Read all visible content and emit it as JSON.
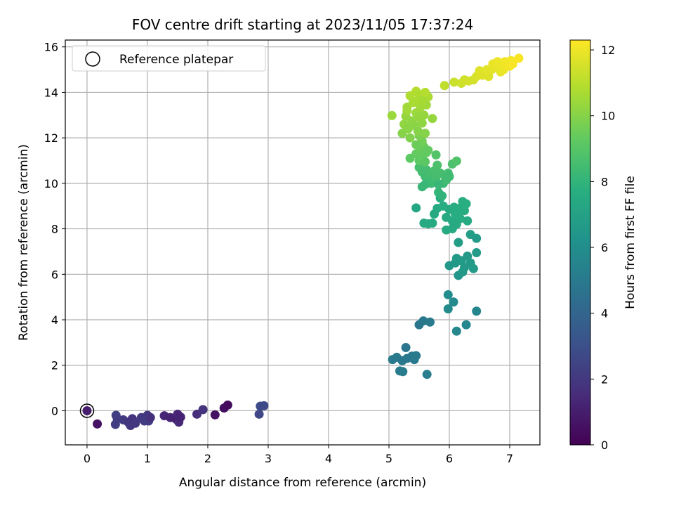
{
  "chart_data": {
    "type": "scatter",
    "title": "FOV centre drift starting at 2023/11/05 17:37:24",
    "xlabel": "Angular distance from reference (arcmin)",
    "ylabel": "Rotation from reference (arcmin)",
    "xlim": [
      -0.36,
      7.5
    ],
    "ylim": [
      -1.5,
      16.3
    ],
    "x_ticks": [
      0,
      1,
      2,
      3,
      4,
      5,
      6,
      7
    ],
    "y_ticks": [
      0,
      2,
      4,
      6,
      8,
      10,
      12,
      14,
      16
    ],
    "grid": true,
    "colormap": "viridis",
    "colorbar": {
      "label": "Hours from first FF file",
      "range": [
        0,
        12.3
      ],
      "ticks": [
        0,
        2,
        4,
        6,
        8,
        10,
        12
      ]
    },
    "legend": {
      "position": "top-left",
      "entries": [
        "Reference platepar"
      ]
    },
    "reference_point": {
      "x": 0,
      "y": 0
    },
    "points": [
      {
        "x": 0.0,
        "y": 0.0,
        "t": 1.0
      },
      {
        "x": 0.17,
        "y": -0.58,
        "t": 0.6
      },
      {
        "x": 0.47,
        "y": -0.6,
        "t": 2.2
      },
      {
        "x": 0.48,
        "y": -0.2,
        "t": 2.3
      },
      {
        "x": 0.5,
        "y": -0.35,
        "t": 2.2
      },
      {
        "x": 0.6,
        "y": -0.4,
        "t": 2.1
      },
      {
        "x": 0.68,
        "y": -0.5,
        "t": 2.0
      },
      {
        "x": 0.72,
        "y": -0.65,
        "t": 1.9
      },
      {
        "x": 0.75,
        "y": -0.35,
        "t": 1.8
      },
      {
        "x": 0.8,
        "y": -0.55,
        "t": 1.9
      },
      {
        "x": 0.9,
        "y": -0.3,
        "t": 2.0
      },
      {
        "x": 0.95,
        "y": -0.45,
        "t": 2.1
      },
      {
        "x": 1.0,
        "y": -0.2,
        "t": 2.0
      },
      {
        "x": 1.02,
        "y": -0.45,
        "t": 2.2
      },
      {
        "x": 1.05,
        "y": -0.3,
        "t": 1.7
      },
      {
        "x": 1.28,
        "y": -0.22,
        "t": 1.3
      },
      {
        "x": 1.38,
        "y": -0.3,
        "t": 1.2
      },
      {
        "x": 1.48,
        "y": -0.38,
        "t": 1.1
      },
      {
        "x": 1.5,
        "y": -0.15,
        "t": 1.3
      },
      {
        "x": 1.52,
        "y": -0.5,
        "t": 1.4
      },
      {
        "x": 1.55,
        "y": -0.28,
        "t": 1.2
      },
      {
        "x": 1.82,
        "y": -0.15,
        "t": 1.6
      },
      {
        "x": 1.92,
        "y": 0.05,
        "t": 1.8
      },
      {
        "x": 2.12,
        "y": -0.18,
        "t": 0.6
      },
      {
        "x": 2.27,
        "y": 0.12,
        "t": 0.5
      },
      {
        "x": 2.33,
        "y": 0.25,
        "t": 0.4
      },
      {
        "x": 2.85,
        "y": -0.15,
        "t": 2.6
      },
      {
        "x": 2.87,
        "y": 0.2,
        "t": 2.8
      },
      {
        "x": 2.93,
        "y": 0.22,
        "t": 2.7
      },
      {
        "x": 5.06,
        "y": 2.25,
        "t": 5.0
      },
      {
        "x": 5.13,
        "y": 2.35,
        "t": 5.0
      },
      {
        "x": 5.18,
        "y": 1.75,
        "t": 5.1
      },
      {
        "x": 5.23,
        "y": 1.72,
        "t": 5.1
      },
      {
        "x": 5.22,
        "y": 2.2,
        "t": 4.9
      },
      {
        "x": 5.28,
        "y": 2.78,
        "t": 4.8
      },
      {
        "x": 5.3,
        "y": 2.3,
        "t": 4.9
      },
      {
        "x": 5.38,
        "y": 2.4,
        "t": 4.9
      },
      {
        "x": 5.42,
        "y": 2.25,
        "t": 5.0
      },
      {
        "x": 5.45,
        "y": 2.42,
        "t": 5.0
      },
      {
        "x": 5.5,
        "y": 3.78,
        "t": 4.8
      },
      {
        "x": 5.57,
        "y": 3.95,
        "t": 4.9
      },
      {
        "x": 5.63,
        "y": 1.6,
        "t": 5.2
      },
      {
        "x": 5.68,
        "y": 3.9,
        "t": 5.0
      },
      {
        "x": 5.98,
        "y": 5.1,
        "t": 5.9
      },
      {
        "x": 5.98,
        "y": 4.48,
        "t": 5.8
      },
      {
        "x": 6.07,
        "y": 4.78,
        "t": 5.8
      },
      {
        "x": 6.12,
        "y": 3.5,
        "t": 5.7
      },
      {
        "x": 6.28,
        "y": 3.78,
        "t": 5.6
      },
      {
        "x": 6.45,
        "y": 4.38,
        "t": 5.6
      },
      {
        "x": 6.0,
        "y": 6.38,
        "t": 6.5
      },
      {
        "x": 6.1,
        "y": 6.5,
        "t": 6.5
      },
      {
        "x": 6.12,
        "y": 6.7,
        "t": 6.6
      },
      {
        "x": 6.15,
        "y": 5.95,
        "t": 6.4
      },
      {
        "x": 6.2,
        "y": 6.6,
        "t": 6.6
      },
      {
        "x": 6.25,
        "y": 6.3,
        "t": 6.6
      },
      {
        "x": 6.3,
        "y": 6.8,
        "t": 6.6
      },
      {
        "x": 6.35,
        "y": 6.5,
        "t": 6.6
      },
      {
        "x": 6.4,
        "y": 6.25,
        "t": 6.7
      },
      {
        "x": 6.15,
        "y": 7.4,
        "t": 6.8
      },
      {
        "x": 6.35,
        "y": 7.75,
        "t": 6.8
      },
      {
        "x": 6.45,
        "y": 7.58,
        "t": 6.7
      },
      {
        "x": 6.45,
        "y": 6.95,
        "t": 6.7
      },
      {
        "x": 6.22,
        "y": 6.1,
        "t": 6.6
      },
      {
        "x": 5.45,
        "y": 8.92,
        "t": 7.3
      },
      {
        "x": 5.58,
        "y": 8.25,
        "t": 7.4
      },
      {
        "x": 5.65,
        "y": 8.22,
        "t": 7.4
      },
      {
        "x": 5.72,
        "y": 8.25,
        "t": 7.4
      },
      {
        "x": 5.75,
        "y": 8.65,
        "t": 7.5
      },
      {
        "x": 5.8,
        "y": 8.9,
        "t": 7.5
      },
      {
        "x": 5.85,
        "y": 9.35,
        "t": 7.6
      },
      {
        "x": 5.9,
        "y": 9.0,
        "t": 7.6
      },
      {
        "x": 5.95,
        "y": 8.5,
        "t": 7.5
      },
      {
        "x": 5.95,
        "y": 7.95,
        "t": 7.4
      },
      {
        "x": 6.0,
        "y": 8.85,
        "t": 7.5
      },
      {
        "x": 6.05,
        "y": 8.35,
        "t": 7.5
      },
      {
        "x": 6.08,
        "y": 8.95,
        "t": 7.6
      },
      {
        "x": 6.1,
        "y": 8.65,
        "t": 7.6
      },
      {
        "x": 6.15,
        "y": 8.75,
        "t": 7.6
      },
      {
        "x": 6.18,
        "y": 8.45,
        "t": 7.6
      },
      {
        "x": 6.2,
        "y": 8.95,
        "t": 7.7
      },
      {
        "x": 6.22,
        "y": 9.2,
        "t": 7.7
      },
      {
        "x": 6.25,
        "y": 8.8,
        "t": 7.6
      },
      {
        "x": 6.28,
        "y": 9.1,
        "t": 7.7
      },
      {
        "x": 6.3,
        "y": 8.35,
        "t": 7.5
      },
      {
        "x": 6.12,
        "y": 8.2,
        "t": 7.5
      },
      {
        "x": 6.05,
        "y": 8.0,
        "t": 7.4
      },
      {
        "x": 5.5,
        "y": 10.7,
        "t": 8.6
      },
      {
        "x": 5.55,
        "y": 10.5,
        "t": 8.5
      },
      {
        "x": 5.6,
        "y": 10.3,
        "t": 8.4
      },
      {
        "x": 5.62,
        "y": 10.6,
        "t": 8.5
      },
      {
        "x": 5.65,
        "y": 10.1,
        "t": 8.4
      },
      {
        "x": 5.68,
        "y": 10.4,
        "t": 8.5
      },
      {
        "x": 5.7,
        "y": 10.0,
        "t": 8.3
      },
      {
        "x": 5.72,
        "y": 10.2,
        "t": 8.4
      },
      {
        "x": 5.75,
        "y": 10.55,
        "t": 8.6
      },
      {
        "x": 5.78,
        "y": 10.25,
        "t": 8.5
      },
      {
        "x": 5.8,
        "y": 10.8,
        "t": 8.7
      },
      {
        "x": 5.85,
        "y": 10.45,
        "t": 8.6
      },
      {
        "x": 5.9,
        "y": 10.0,
        "t": 8.3
      },
      {
        "x": 5.92,
        "y": 10.35,
        "t": 8.5
      },
      {
        "x": 5.95,
        "y": 10.15,
        "t": 8.4
      },
      {
        "x": 5.98,
        "y": 10.45,
        "t": 8.5
      },
      {
        "x": 6.0,
        "y": 10.3,
        "t": 8.4
      },
      {
        "x": 6.05,
        "y": 10.85,
        "t": 8.7
      },
      {
        "x": 6.12,
        "y": 10.98,
        "t": 8.8
      },
      {
        "x": 5.55,
        "y": 9.85,
        "t": 8.2
      },
      {
        "x": 5.6,
        "y": 9.95,
        "t": 8.2
      },
      {
        "x": 5.82,
        "y": 9.6,
        "t": 8.1
      },
      {
        "x": 5.88,
        "y": 9.45,
        "t": 8.0
      },
      {
        "x": 5.82,
        "y": 9.95,
        "t": 8.2
      },
      {
        "x": 5.78,
        "y": 11.25,
        "t": 8.9
      },
      {
        "x": 5.35,
        "y": 11.1,
        "t": 9.2
      },
      {
        "x": 5.45,
        "y": 11.3,
        "t": 9.3
      },
      {
        "x": 5.5,
        "y": 11.0,
        "t": 9.2
      },
      {
        "x": 5.52,
        "y": 11.5,
        "t": 9.4
      },
      {
        "x": 5.55,
        "y": 11.2,
        "t": 9.3
      },
      {
        "x": 5.58,
        "y": 11.6,
        "t": 9.4
      },
      {
        "x": 5.6,
        "y": 10.95,
        "t": 9.1
      },
      {
        "x": 5.62,
        "y": 11.35,
        "t": 9.3
      },
      {
        "x": 5.65,
        "y": 11.45,
        "t": 9.3
      },
      {
        "x": 5.55,
        "y": 11.85,
        "t": 9.6
      },
      {
        "x": 5.5,
        "y": 12.1,
        "t": 9.8
      },
      {
        "x": 5.45,
        "y": 11.7,
        "t": 9.5
      },
      {
        "x": 5.05,
        "y": 12.98,
        "t": 10.4
      },
      {
        "x": 5.22,
        "y": 12.2,
        "t": 10.0
      },
      {
        "x": 5.25,
        "y": 12.6,
        "t": 10.2
      },
      {
        "x": 5.28,
        "y": 12.95,
        "t": 10.3
      },
      {
        "x": 5.3,
        "y": 13.35,
        "t": 10.5
      },
      {
        "x": 5.32,
        "y": 12.4,
        "t": 10.1
      },
      {
        "x": 5.35,
        "y": 12.0,
        "t": 9.9
      },
      {
        "x": 5.38,
        "y": 12.75,
        "t": 10.2
      },
      {
        "x": 5.4,
        "y": 13.55,
        "t": 10.6
      },
      {
        "x": 5.42,
        "y": 12.55,
        "t": 10.1
      },
      {
        "x": 5.45,
        "y": 13.1,
        "t": 10.4
      },
      {
        "x": 5.48,
        "y": 12.3,
        "t": 10.0
      },
      {
        "x": 5.5,
        "y": 12.9,
        "t": 10.3
      },
      {
        "x": 5.52,
        "y": 13.35,
        "t": 10.5
      },
      {
        "x": 5.55,
        "y": 12.65,
        "t": 10.2
      },
      {
        "x": 5.58,
        "y": 13.0,
        "t": 10.3
      },
      {
        "x": 5.6,
        "y": 12.2,
        "t": 10.0
      },
      {
        "x": 5.62,
        "y": 13.45,
        "t": 10.5
      },
      {
        "x": 5.65,
        "y": 13.8,
        "t": 10.7
      },
      {
        "x": 5.72,
        "y": 12.85,
        "t": 10.3
      },
      {
        "x": 5.35,
        "y": 13.85,
        "t": 10.8
      },
      {
        "x": 5.45,
        "y": 14.05,
        "t": 10.9
      },
      {
        "x": 5.5,
        "y": 13.9,
        "t": 10.8
      },
      {
        "x": 5.55,
        "y": 13.65,
        "t": 10.6
      },
      {
        "x": 5.6,
        "y": 14.0,
        "t": 10.9
      },
      {
        "x": 5.3,
        "y": 13.2,
        "t": 10.5
      },
      {
        "x": 5.42,
        "y": 13.6,
        "t": 10.7
      },
      {
        "x": 5.92,
        "y": 14.3,
        "t": 11.1
      },
      {
        "x": 6.08,
        "y": 14.45,
        "t": 11.3
      },
      {
        "x": 6.2,
        "y": 14.4,
        "t": 11.4
      },
      {
        "x": 6.25,
        "y": 14.55,
        "t": 11.4
      },
      {
        "x": 6.32,
        "y": 14.5,
        "t": 11.5
      },
      {
        "x": 6.4,
        "y": 14.55,
        "t": 11.5
      },
      {
        "x": 6.45,
        "y": 14.7,
        "t": 11.6
      },
      {
        "x": 6.5,
        "y": 14.95,
        "t": 11.7
      },
      {
        "x": 6.55,
        "y": 14.75,
        "t": 11.7
      },
      {
        "x": 6.6,
        "y": 14.9,
        "t": 11.7
      },
      {
        "x": 6.65,
        "y": 14.7,
        "t": 11.7
      },
      {
        "x": 6.7,
        "y": 15.0,
        "t": 11.8
      },
      {
        "x": 6.72,
        "y": 15.25,
        "t": 11.9
      },
      {
        "x": 6.78,
        "y": 15.1,
        "t": 11.9
      },
      {
        "x": 6.8,
        "y": 15.35,
        "t": 12.0
      },
      {
        "x": 6.85,
        "y": 14.9,
        "t": 11.9
      },
      {
        "x": 6.88,
        "y": 15.2,
        "t": 12.0
      },
      {
        "x": 6.9,
        "y": 15.0,
        "t": 12.0
      },
      {
        "x": 6.95,
        "y": 15.3,
        "t": 12.1
      },
      {
        "x": 7.0,
        "y": 15.15,
        "t": 12.1
      },
      {
        "x": 7.02,
        "y": 15.4,
        "t": 12.1
      },
      {
        "x": 7.05,
        "y": 15.25,
        "t": 12.2
      },
      {
        "x": 7.15,
        "y": 15.5,
        "t": 12.2
      },
      {
        "x": 6.62,
        "y": 15.0,
        "t": 11.8
      },
      {
        "x": 6.92,
        "y": 15.35,
        "t": 12.1
      }
    ]
  }
}
